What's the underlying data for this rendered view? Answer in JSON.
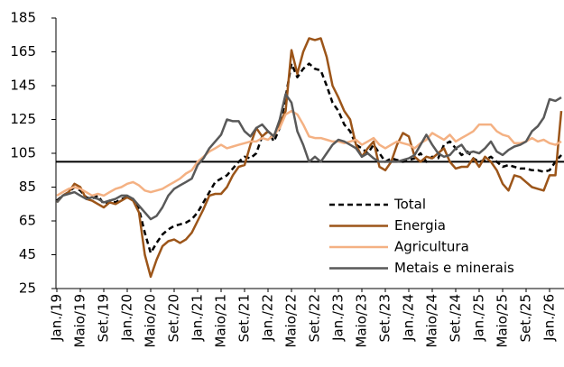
{
  "chart_data": {
    "type": "line",
    "categories": [
      "Jan./19",
      null,
      null,
      null,
      "Maio/19",
      null,
      null,
      null,
      "Set./19",
      null,
      null,
      null,
      "Jan./20",
      null,
      null,
      null,
      "Maio/20",
      null,
      null,
      null,
      "Set./20",
      null,
      null,
      null,
      "Jan./21",
      null,
      null,
      null,
      "Maio/21",
      null,
      null,
      null,
      "Set./21",
      null,
      null,
      null,
      "Jan./22",
      null,
      null,
      null,
      "Maio/22",
      null,
      null,
      null,
      "Set./22",
      null,
      null,
      null,
      "Jan./23",
      null,
      null,
      null,
      "Maio/23",
      null,
      null,
      null,
      "Set./23",
      null,
      null,
      null,
      "Jan./24",
      null,
      null,
      null,
      "Maio/24",
      null,
      null,
      null,
      "Set./24",
      null,
      null,
      null,
      "Jan./25",
      null,
      null,
      null,
      "Maio/25",
      null,
      null,
      null,
      "Set./25",
      null,
      null,
      null,
      "Jan./26",
      null,
      null
    ],
    "series": [
      {
        "name": "Total",
        "color": "#000000",
        "dash": true,
        "values": [
          77,
          80,
          82,
          85,
          83,
          79,
          78,
          80,
          75,
          77,
          76,
          78,
          79,
          78,
          72,
          58,
          46,
          52,
          57,
          60,
          62,
          63,
          64,
          66,
          70,
          76,
          82,
          88,
          90,
          92,
          96,
          100,
          103,
          102,
          105,
          115,
          118,
          112,
          120,
          138,
          158,
          150,
          155,
          158,
          155,
          154,
          145,
          135,
          130,
          122,
          118,
          110,
          108,
          105,
          110,
          105,
          100,
          102,
          101,
          100,
          101,
          102,
          105,
          100,
          103,
          102,
          110,
          112,
          108,
          104,
          106,
          102,
          100,
          101,
          103,
          100,
          97,
          98,
          97,
          96,
          96,
          95,
          95,
          94,
          95,
          100,
          104
        ]
      },
      {
        "name": "Energia",
        "color": "#9c5519",
        "dash": false,
        "values": [
          76,
          80,
          82,
          87,
          85,
          78,
          77,
          75,
          73,
          76,
          75,
          77,
          79,
          77,
          70,
          45,
          32,
          42,
          50,
          53,
          54,
          52,
          54,
          58,
          65,
          72,
          80,
          81,
          81,
          85,
          92,
          97,
          98,
          110,
          120,
          115,
          118,
          115,
          122,
          130,
          166,
          152,
          165,
          173,
          172,
          173,
          162,
          145,
          138,
          130,
          125,
          110,
          103,
          108,
          112,
          97,
          95,
          100,
          110,
          117,
          115,
          103,
          100,
          103,
          102,
          105,
          108,
          100,
          96,
          97,
          97,
          102,
          97,
          103,
          100,
          95,
          87,
          83,
          92,
          91,
          88,
          85,
          84,
          83,
          92,
          92,
          130
        ]
      },
      {
        "name": "Agricultura",
        "color": "#f4b183",
        "dash": false,
        "values": [
          80,
          82,
          84,
          85,
          84,
          82,
          80,
          81,
          80,
          82,
          84,
          85,
          87,
          88,
          86,
          83,
          82,
          83,
          84,
          86,
          88,
          90,
          93,
          95,
          100,
          103,
          106,
          108,
          110,
          108,
          109,
          110,
          111,
          112,
          112,
          114,
          113,
          116,
          120,
          128,
          130,
          128,
          122,
          115,
          114,
          114,
          113,
          112,
          112,
          111,
          112,
          113,
          110,
          112,
          114,
          110,
          108,
          110,
          112,
          111,
          110,
          108,
          111,
          113,
          117,
          115,
          113,
          116,
          112,
          114,
          116,
          118,
          122,
          122,
          122,
          118,
          116,
          115,
          111,
          111,
          112,
          114,
          112,
          113,
          111,
          110,
          112
        ]
      },
      {
        "name": "Metais e minerais",
        "color": "#595959",
        "dash": false,
        "values": [
          76,
          80,
          81,
          82,
          80,
          78,
          79,
          78,
          76,
          77,
          78,
          80,
          80,
          78,
          74,
          70,
          66,
          68,
          73,
          80,
          84,
          86,
          88,
          90,
          98,
          102,
          108,
          112,
          116,
          125,
          124,
          124,
          118,
          115,
          120,
          122,
          118,
          115,
          125,
          140,
          135,
          118,
          110,
          100,
          103,
          100,
          105,
          110,
          113,
          112,
          110,
          108,
          103,
          105,
          102,
          100,
          100,
          100,
          100,
          101,
          102,
          104,
          110,
          116,
          110,
          105,
          103,
          104,
          108,
          110,
          105,
          106,
          105,
          108,
          112,
          106,
          104,
          107,
          109,
          110,
          112,
          118,
          121,
          126,
          137,
          136,
          138
        ]
      }
    ],
    "ylim": [
      25,
      185
    ],
    "yticks": [
      25,
      45,
      65,
      85,
      105,
      125,
      145,
      165,
      185
    ],
    "reference_line": 100,
    "legend": "lower right",
    "grid": false
  }
}
